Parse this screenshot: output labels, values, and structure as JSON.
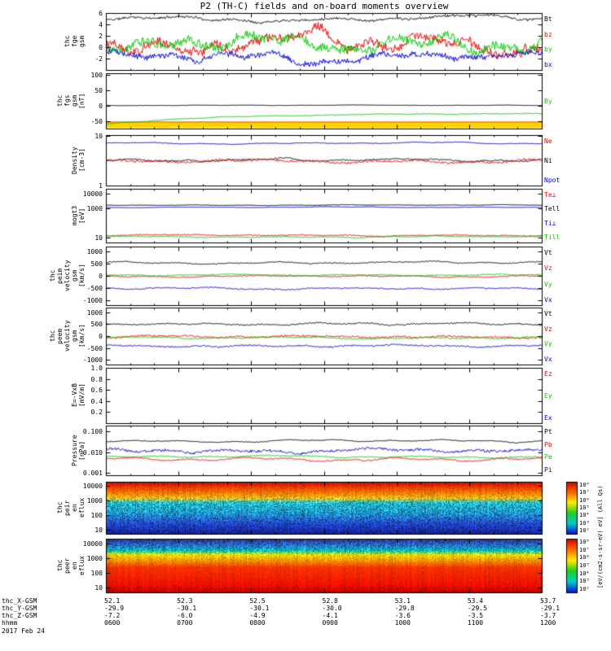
{
  "title": "P2 (TH-C) fields and on-board moments overview",
  "date_label": "2017 Feb 24",
  "bottom_rows": [
    {
      "label": "thc_X-GSM",
      "values": [
        "52.1",
        "52.3",
        "52.5",
        "52.8",
        "53.1",
        "53.4",
        "53.7"
      ]
    },
    {
      "label": "thc_Y-GSM",
      "values": [
        "-29.9",
        "-30.1",
        "-30.1",
        "-30.0",
        "-29.8",
        "-29.5",
        "-29.1"
      ]
    },
    {
      "label": "thc_Z-GSM",
      "values": [
        "-7.2",
        "-6.0",
        "-4.9",
        "-4.1",
        "-3.6",
        "-3.5",
        "-3.7"
      ]
    },
    {
      "label": "hhmm",
      "values": [
        "0600",
        "0700",
        "0800",
        "0900",
        "1000",
        "1100",
        "1200"
      ]
    }
  ],
  "colorbar": {
    "ticks": [
      "10⁸",
      "10⁷",
      "10⁶",
      "10⁵",
      "10⁴",
      "10³",
      "10²"
    ],
    "label": "[eV/(cm2-s-sr-eV) eV] (All Qs)",
    "stops": [
      "#cc0000",
      "#ff6600",
      "#ffee00",
      "#22cc22",
      "#00cccc",
      "#1111cc"
    ]
  },
  "chart_data": [
    {
      "name": "fge-field",
      "type": "line",
      "log": false,
      "ylabel": [
        "thc",
        "fge",
        "gsm"
      ],
      "yrange": [
        -4,
        6
      ],
      "yticks": [
        {
          "v": 6,
          "t": "6"
        },
        {
          "v": 4,
          "t": "4"
        },
        {
          "v": 2,
          "t": "2"
        },
        {
          "v": 0,
          "t": "0"
        },
        {
          "v": -2,
          "t": "-2"
        }
      ],
      "series": [
        {
          "label": "Bt",
          "color": "#000000",
          "mean": 5.1,
          "amp": 0.4,
          "rough": 0.12,
          "jag": 0.18,
          "seed": 11
        },
        {
          "label": "bz",
          "color": "#ee0000",
          "mean": 0.9,
          "amp": 1.7,
          "rough": 0.5,
          "jag": 0.7,
          "seed": 12
        },
        {
          "label": "by",
          "color": "#00cc00",
          "mean": 0.5,
          "amp": 1.8,
          "rough": 0.5,
          "jag": 0.7,
          "seed": 13
        },
        {
          "label": "bx",
          "color": "#0000dd",
          "mean": -1.7,
          "amp": 0.9,
          "rough": 0.3,
          "jag": 0.45,
          "seed": 14
        }
      ],
      "legend": [
        {
          "t": "Bt",
          "c": "#000000"
        },
        {
          "t": "bz",
          "c": "#ee0000"
        },
        {
          "t": "by",
          "c": "#00cc00"
        },
        {
          "t": "bx",
          "c": "#0000dd"
        }
      ]
    },
    {
      "name": "fgs-field",
      "type": "line",
      "log": false,
      "ylabel": [
        "thc",
        "fgs",
        "gsm",
        "[nT]"
      ],
      "yrange": [
        -75,
        105
      ],
      "yticks": [
        {
          "v": 100,
          "t": "100"
        },
        {
          "v": 50,
          "t": "50"
        },
        {
          "v": 0,
          "t": "0"
        },
        {
          "v": -50,
          "t": "-50"
        }
      ],
      "roi_bar": {
        "color": "#ffd400",
        "edge": "#ff9900"
      },
      "series": [
        {
          "label": "Bz",
          "color": "#000000",
          "mean": 0.8,
          "amp": 0.8,
          "rough": 0.1,
          "jag": 0.5,
          "seed": 22
        },
        {
          "label": "By",
          "color": "#00cc00",
          "mode": "rise",
          "start": -62,
          "end": -27,
          "amp": 1.5,
          "rough": 0.25,
          "jag": 1.2,
          "seed": 21
        }
      ],
      "legend": [
        {
          "t": "By",
          "c": "#00cc00"
        }
      ]
    },
    {
      "name": "density",
      "type": "line",
      "log": true,
      "ylabel": [
        "Density",
        "[cm-3]"
      ],
      "yrange": [
        1,
        10.5
      ],
      "yticks": [
        {
          "v": 10,
          "t": "10"
        },
        {
          "v": 1,
          "t": "1"
        }
      ],
      "series": [
        {
          "label": "Npot",
          "color": "#0000dd",
          "mean": 7.2,
          "amp": 0.015,
          "rough": 0.004,
          "jag": 0.004,
          "seed": 31
        },
        {
          "label": "Ni",
          "color": "#000000",
          "mean": 3.3,
          "amp": 0.03,
          "rough": 0.008,
          "jag": 0.012,
          "seed": 32
        },
        {
          "label": "Ne",
          "color": "#ee0000",
          "mean": 3.05,
          "amp": 0.03,
          "rough": 0.008,
          "jag": 0.02,
          "seed": 33
        }
      ],
      "legend": [
        {
          "t": "Ne",
          "c": "#ee0000"
        },
        {
          "t": "Ni",
          "c": "#000000"
        },
        {
          "t": "Npot",
          "c": "#0000dd"
        }
      ]
    },
    {
      "name": "temperature",
      "type": "line",
      "log": true,
      "ylabel": [
        "mogt3",
        "[eV]"
      ],
      "yrange": [
        5,
        20000
      ],
      "yticks": [
        {
          "v": 10000,
          "t": "10000"
        },
        {
          "v": 1000,
          "t": "1000"
        },
        {
          "v": 10,
          "t": "10"
        }
      ],
      "series": [
        {
          "label": "Tell",
          "color": "#000000",
          "mean": 1600,
          "amp": 0.025,
          "rough": 0.006,
          "jag": 0.01,
          "seed": 41
        },
        {
          "label": "Ti⊥",
          "color": "#0000dd",
          "mean": 1150,
          "amp": 0.03,
          "rough": 0.006,
          "jag": 0.012,
          "seed": 42
        },
        {
          "label": "Te⊥",
          "color": "#ee0000",
          "mean": 15,
          "amp": 0.04,
          "rough": 0.01,
          "jag": 0.03,
          "seed": 43
        },
        {
          "label": "Till",
          "color": "#00cc00",
          "mean": 12,
          "amp": 0.04,
          "rough": 0.01,
          "jag": 0.025,
          "seed": 44
        }
      ],
      "legend": [
        {
          "t": "Te⊥",
          "c": "#ee0000"
        },
        {
          "t": "Tell",
          "c": "#000000"
        },
        {
          "t": "Ti⊥",
          "c": "#0000dd"
        },
        {
          "t": "Till",
          "c": "#00cc00"
        }
      ]
    },
    {
      "name": "peim-velocity",
      "type": "line",
      "log": false,
      "ylabel": [
        "thc",
        "peim",
        "velocity",
        "gsm",
        "[km/s]"
      ],
      "yrange": [
        -1200,
        1200
      ],
      "yticks": [
        {
          "v": 1000,
          "t": "1000"
        },
        {
          "v": 500,
          "t": "500"
        },
        {
          "v": 0,
          "t": "0"
        },
        {
          "v": -500,
          "t": "-500"
        },
        {
          "v": -1000,
          "t": "-1000"
        }
      ],
      "series": [
        {
          "label": "Vt",
          "color": "#000000",
          "mean": 545,
          "amp": 45,
          "rough": 10,
          "jag": 18,
          "seed": 51
        },
        {
          "label": "Vz",
          "color": "#ee0000",
          "mean": -15,
          "amp": 30,
          "rough": 8,
          "jag": 20,
          "seed": 52
        },
        {
          "label": "Vy",
          "color": "#00cc00",
          "mean": 35,
          "amp": 30,
          "rough": 8,
          "jag": 18,
          "seed": 53
        },
        {
          "label": "Vx",
          "color": "#0000dd",
          "mean": -515,
          "amp": 40,
          "rough": 9,
          "jag": 20,
          "seed": 54
        }
      ],
      "legend": [
        {
          "t": "Vt",
          "c": "#000000"
        },
        {
          "t": "Vz",
          "c": "#ee0000"
        },
        {
          "t": "Vy",
          "c": "#00cc00"
        },
        {
          "t": "Vx",
          "c": "#0000dd"
        }
      ]
    },
    {
      "name": "peem-velocity",
      "type": "line",
      "log": false,
      "ylabel": [
        "thc",
        "peem",
        "velocity",
        "gsm",
        "[km/s]"
      ],
      "yrange": [
        -1200,
        1200
      ],
      "yticks": [
        {
          "v": 1000,
          "t": "1000"
        },
        {
          "v": 500,
          "t": "500"
        },
        {
          "v": 0,
          "t": "0"
        },
        {
          "v": -500,
          "t": "-500"
        },
        {
          "v": -1000,
          "t": "-1000"
        }
      ],
      "series": [
        {
          "label": "Vt",
          "color": "#000000",
          "mean": 505,
          "amp": 55,
          "rough": 12,
          "jag": 25,
          "seed": 61
        },
        {
          "label": "Vz",
          "color": "#ee0000",
          "mean": -25,
          "amp": 45,
          "rough": 12,
          "jag": 35,
          "seed": 62
        },
        {
          "label": "Vy",
          "color": "#00cc00",
          "mean": -70,
          "amp": 40,
          "rough": 10,
          "jag": 25,
          "seed": 63
        },
        {
          "label": "Vx",
          "color": "#0000dd",
          "mean": -425,
          "amp": 45,
          "rough": 12,
          "jag": 28,
          "seed": 64
        }
      ],
      "legend": [
        {
          "t": "Vt",
          "c": "#000000"
        },
        {
          "t": "Vz",
          "c": "#ee0000"
        },
        {
          "t": "Vy",
          "c": "#00cc00"
        },
        {
          "t": "Vx",
          "c": "#0000dd"
        }
      ]
    },
    {
      "name": "e-field",
      "type": "line",
      "log": false,
      "ylabel": [
        "E=-VxB",
        "[mV/m]"
      ],
      "yrange": [
        0,
        1
      ],
      "yticks": [
        {
          "v": 1.0,
          "t": "1.0"
        },
        {
          "v": 0.8,
          "t": "0.8"
        },
        {
          "v": 0.6,
          "t": "0.6"
        },
        {
          "v": 0.4,
          "t": "0.4"
        },
        {
          "v": 0.2,
          "t": "0.2"
        }
      ],
      "series": [],
      "legend": [
        {
          "t": "Ez",
          "c": "#ee0000"
        },
        {
          "t": "Ey",
          "c": "#00cc00"
        },
        {
          "t": "Ex",
          "c": "#0000dd"
        }
      ]
    },
    {
      "name": "pressure",
      "type": "line",
      "log": true,
      "ylabel": [
        "Pressure",
        "[nPa]"
      ],
      "yrange": [
        0.0008,
        0.18
      ],
      "yticks": [
        {
          "v": 0.1,
          "t": "0.100"
        },
        {
          "v": 0.01,
          "t": "0.010"
        },
        {
          "v": 0.001,
          "t": "0.001"
        }
      ],
      "series": [
        {
          "label": "Pt",
          "color": "#000000",
          "mean": 0.034,
          "amp": 0.06,
          "rough": 0.01,
          "jag": 0.015,
          "seed": 81
        },
        {
          "label": "Pe",
          "color": "#00cc00",
          "mean": 0.006,
          "amp": 0.05,
          "rough": 0.008,
          "jag": 0.02,
          "seed": 82
        },
        {
          "label": "Pb",
          "color": "#ee0000",
          "mean": 0.0045,
          "amp": 0.09,
          "rough": 0.015,
          "jag": 0.03,
          "seed": 83
        },
        {
          "label": "Pi",
          "color": "#0000dd",
          "mean": 0.0115,
          "amp": 0.1,
          "rough": 0.02,
          "jag": 0.06,
          "seed": 84
        }
      ],
      "legend": [
        {
          "t": "Pt",
          "c": "#000000"
        },
        {
          "t": "Pb",
          "c": "#ee0000"
        },
        {
          "t": "Pe",
          "c": "#00cc00"
        },
        {
          "t": "Pi",
          "c": "#0000dd"
        }
      ]
    },
    {
      "name": "peir-energy-spectrogram",
      "type": "spectrogram",
      "log": true,
      "seed": 91,
      "ylabel": [
        "thc",
        "peir",
        "en",
        "eflux"
      ],
      "yrange": [
        5,
        20000
      ],
      "yticks": [
        {
          "v": 10000,
          "t": "10000"
        },
        {
          "v": 1000,
          "t": "1000"
        },
        {
          "v": 100,
          "t": "100"
        },
        {
          "v": 10,
          "t": "10"
        }
      ],
      "profile": [
        {
          "f": 0.0,
          "c": "#cc1100",
          "j": 0.18
        },
        {
          "f": 0.1,
          "c": "#ee4400",
          "j": 0.22
        },
        {
          "f": 0.22,
          "c": "#ff8800",
          "j": 0.28
        },
        {
          "f": 0.3,
          "c": "#ddbb22",
          "j": 0.35
        },
        {
          "f": 0.38,
          "c": "#22bbcc",
          "j": 0.5
        },
        {
          "f": 0.6,
          "c": "#1f8fd0",
          "j": 0.55
        },
        {
          "f": 0.8,
          "c": "#2244cc",
          "j": 0.5
        },
        {
          "f": 1.0,
          "c": "#13208a",
          "j": 0.45
        }
      ]
    },
    {
      "name": "peer-energy-spectrogram",
      "type": "spectrogram",
      "log": true,
      "seed": 101,
      "ylabel": [
        "thc",
        "peer",
        "en",
        "eflux"
      ],
      "yrange": [
        5,
        20000
      ],
      "yticks": [
        {
          "v": 10000,
          "t": "10000"
        },
        {
          "v": 1000,
          "t": "1000"
        },
        {
          "v": 100,
          "t": "100"
        },
        {
          "v": 10,
          "t": "10"
        }
      ],
      "profile": [
        {
          "f": 0.0,
          "c": "#26379a",
          "j": 0.5
        },
        {
          "f": 0.12,
          "c": "#2277cc",
          "j": 0.5
        },
        {
          "f": 0.2,
          "c": "#00bbaa",
          "j": 0.4
        },
        {
          "f": 0.28,
          "c": "#eedd00",
          "j": 0.3
        },
        {
          "f": 0.38,
          "c": "#ff9900",
          "j": 0.25
        },
        {
          "f": 0.52,
          "c": "#ff3300",
          "j": 0.18
        },
        {
          "f": 0.85,
          "c": "#ee1100",
          "j": 0.15
        },
        {
          "f": 1.0,
          "c": "#b30000",
          "j": 0.2
        }
      ]
    }
  ]
}
